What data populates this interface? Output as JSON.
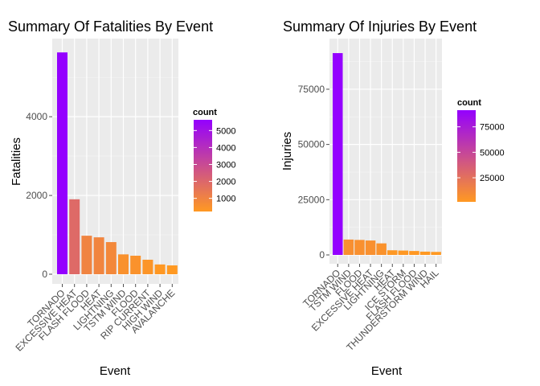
{
  "chart_data": [
    {
      "type": "bar",
      "title": "Summary Of Fatalities By Event",
      "xlabel": "Event",
      "ylabel": "Fatalities",
      "categories": [
        "TORNADO",
        "EXCESSIVE HEAT",
        "FLASH FLOOD",
        "HEAT",
        "LIGHTNING",
        "TSTM WIND",
        "FLOOD",
        "RIP CURRENT",
        "HIGH WIND",
        "AVALANCHE"
      ],
      "values": [
        5633,
        1903,
        978,
        937,
        816,
        504,
        470,
        368,
        248,
        224
      ],
      "ylim": [
        0,
        5800
      ],
      "yticks": [
        0,
        2000,
        4000
      ],
      "ytick_labels": [
        "0",
        "2000",
        "4000"
      ],
      "grid": true,
      "legend": {
        "title": "count",
        "position": "right",
        "low_color": "#ff9922",
        "high_color": "#9400ff",
        "min": 224,
        "max": 5633,
        "breaks": [
          1000,
          2000,
          3000,
          4000,
          5000
        ],
        "break_labels": [
          "1000",
          "2000",
          "3000",
          "4000",
          "5000"
        ]
      }
    },
    {
      "type": "bar",
      "title": "Summary Of Injuries By Event",
      "xlabel": "Event",
      "ylabel": "Injuries",
      "categories": [
        "TORNADO",
        "TSTM WIND",
        "FLOOD",
        "EXCESSIVE HEAT",
        "LIGHTNING",
        "HEAT",
        "ICE STORM",
        "FLASH FLOOD",
        "THUNDERSTORM WIND",
        "HAIL"
      ],
      "values": [
        91346,
        6957,
        6789,
        6525,
        5230,
        2100,
        1975,
        1777,
        1488,
        1361
      ],
      "ylim": [
        0,
        95000
      ],
      "yticks": [
        0,
        25000,
        50000,
        75000
      ],
      "ytick_labels": [
        "0",
        "25000",
        "50000",
        "75000"
      ],
      "grid": true,
      "legend": {
        "title": "count",
        "position": "right",
        "low_color": "#ff9922",
        "high_color": "#9400ff",
        "min": 1361,
        "max": 91346,
        "breaks": [
          25000,
          50000,
          75000
        ],
        "break_labels": [
          "25000",
          "50000",
          "75000"
        ]
      }
    }
  ]
}
